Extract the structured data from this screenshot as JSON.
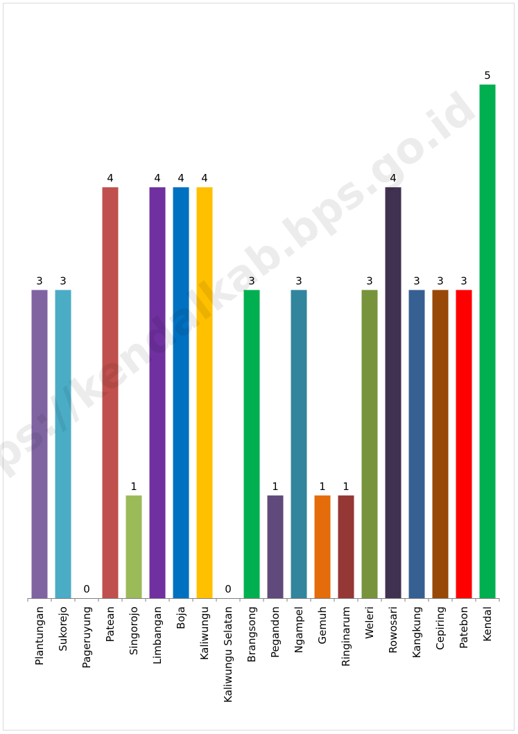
{
  "chart_data": {
    "type": "bar",
    "categories": [
      "Plantungan",
      "Sukorejo",
      "Pageruyung",
      "Patean",
      "Singorojo",
      "Limbangan",
      "Boja",
      "Kaliwungu",
      "Kaliwungu Selatan",
      "Brangsong",
      "Pegandon",
      "Ngampel",
      "Gemuh",
      "Ringinarum",
      "Weleri",
      "Rowosari",
      "Kangkung",
      "Cepiring",
      "Patebon",
      "Kendal"
    ],
    "values": [
      3,
      3,
      0,
      4,
      1,
      4,
      4,
      4,
      0,
      3,
      1,
      3,
      1,
      1,
      3,
      4,
      3,
      3,
      3,
      5
    ],
    "colors": [
      "#8064a2",
      "#4bacc6",
      "#f79646",
      "#c0504d",
      "#9bbb59",
      "#7030a0",
      "#0070c0",
      "#ffc000",
      "#9bbb59",
      "#00b050",
      "#604a7b",
      "#31859c",
      "#e46c0a",
      "#953735",
      "#77933c",
      "#403151",
      "#376092",
      "#984807",
      "#ff0000",
      "#00b050"
    ],
    "ylim": [
      0,
      5
    ],
    "grid": false,
    "legend": "none",
    "data_labels": true
  },
  "watermark": "https://kendalkab.bps.go.id"
}
